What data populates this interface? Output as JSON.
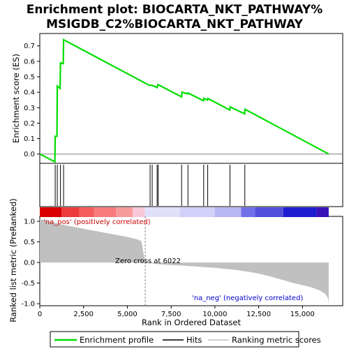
{
  "chart_data": {
    "type": "line",
    "title_line1": "Enrichment plot: BIOCARTA_NKT_PATHWAY%",
    "title_line2": "MSIGDB_C2%BIOCARTA_NKT_PATHWAY",
    "es_panel": {
      "ylabel": "Enrichment score (ES)",
      "ylim": [
        -0.06,
        0.78
      ],
      "yticks": [
        "0.0",
        "0.1",
        "0.2",
        "0.3",
        "0.4",
        "0.5",
        "0.6",
        "0.7"
      ],
      "ytick_values": [
        0.0,
        0.1,
        0.2,
        0.3,
        0.4,
        0.5,
        0.6,
        0.7
      ],
      "line_color": "#00dd00",
      "curve": [
        [
          0,
          0.0
        ],
        [
          860,
          -0.05
        ],
        [
          880,
          0.115
        ],
        [
          980,
          0.115
        ],
        [
          1000,
          0.44
        ],
        [
          1160,
          0.425
        ],
        [
          1180,
          0.59
        ],
        [
          1340,
          0.585
        ],
        [
          1360,
          0.74
        ],
        [
          6250,
          0.445
        ],
        [
          6400,
          0.445
        ],
        [
          6700,
          0.43
        ],
        [
          6750,
          0.45
        ],
        [
          8100,
          0.37
        ],
        [
          8120,
          0.4
        ],
        [
          8450,
          0.39
        ],
        [
          8470,
          0.395
        ],
        [
          9350,
          0.345
        ],
        [
          9370,
          0.36
        ],
        [
          9580,
          0.35
        ],
        [
          9600,
          0.36
        ],
        [
          10850,
          0.285
        ],
        [
          10870,
          0.305
        ],
        [
          11700,
          0.26
        ],
        [
          11720,
          0.29
        ],
        [
          16500,
          0.0
        ]
      ]
    },
    "hits": [
      880,
      1000,
      1180,
      1360,
      6300,
      6420,
      6700,
      6760,
      8100,
      8460,
      9360,
      9590,
      10860,
      11710
    ],
    "metric_panel": {
      "ylabel": "Ranked list metric (PreRanked)",
      "ylim": [
        -1.05,
        1.12
      ],
      "yticks": [
        "1.0",
        "0.5",
        "0.0",
        "-0.5",
        "-1.0"
      ],
      "ytick_values": [
        1.0,
        0.5,
        0.0,
        -0.5,
        -1.0
      ],
      "fill_color": "#c0c0c0",
      "zero_cross_label": "Zero cross at 6022",
      "zero_cross": 6022,
      "pos_label": "'na_pos' (positively correlated)",
      "neg_label": "'na_neg' (negatively correlated)",
      "pos_color": "#cc0000",
      "neg_color": "#0000cc"
    },
    "xlabel": "Rank in Ordered Dataset",
    "xlim": [
      0,
      17300
    ],
    "xticks": [
      "0",
      "2,500",
      "5,000",
      "7,500",
      "10,000",
      "12,500",
      "15,000"
    ],
    "xtick_values": [
      0,
      2500,
      5000,
      7500,
      10000,
      12500,
      15000
    ],
    "n_genes": 16500,
    "legend": {
      "enrichment": "Enrichment profile",
      "hits": "Hits",
      "ranking": "Ranking metric scores"
    }
  }
}
